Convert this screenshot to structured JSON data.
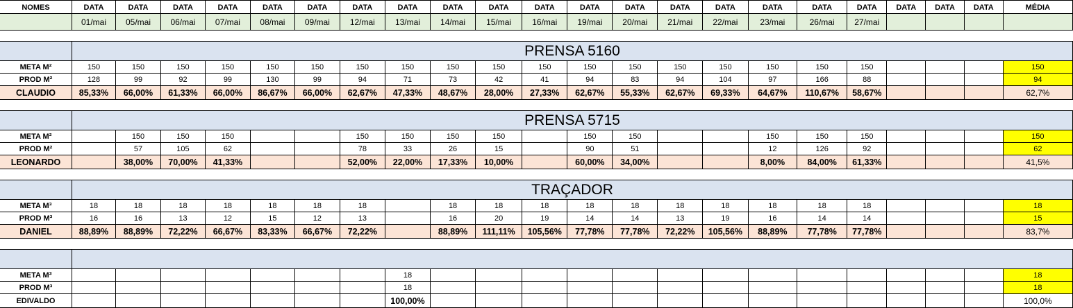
{
  "header": {
    "names_label": "NOMES",
    "date_label": "DATA",
    "avg_label": "MÉDIA",
    "dates": [
      "01/mai",
      "05/mai",
      "06/mai",
      "07/mai",
      "08/mai",
      "09/mai",
      "12/mai",
      "13/mai",
      "14/mai",
      "15/mai",
      "16/mai",
      "19/mai",
      "20/mai",
      "21/mai",
      "22/mai",
      "23/mai",
      "26/mai",
      "27/mai",
      "",
      "",
      ""
    ]
  },
  "sections": [
    {
      "title": "PRENSA 5160",
      "meta_label": "META M²",
      "prod_label": "PROD M²",
      "operator": "CLAUDIO",
      "meta": [
        "150",
        "150",
        "150",
        "150",
        "150",
        "150",
        "150",
        "150",
        "150",
        "150",
        "150",
        "150",
        "150",
        "150",
        "150",
        "150",
        "150",
        "150",
        "",
        "",
        ""
      ],
      "prod": [
        "128",
        "99",
        "92",
        "99",
        "130",
        "99",
        "94",
        "71",
        "73",
        "42",
        "41",
        "94",
        "83",
        "94",
        "104",
        "97",
        "166",
        "88",
        "",
        "",
        ""
      ],
      "pct": [
        "85,33%",
        "66,00%",
        "61,33%",
        "66,00%",
        "86,67%",
        "66,00%",
        "62,67%",
        "47,33%",
        "48,67%",
        "28,00%",
        "27,33%",
        "62,67%",
        "55,33%",
        "62,67%",
        "69,33%",
        "64,67%",
        "110,67%",
        "58,67%",
        "",
        "",
        ""
      ],
      "avg_meta": "150",
      "avg_prod": "94",
      "avg_pct": "62,7%"
    },
    {
      "title": "PRENSA 5715",
      "meta_label": "META M²",
      "prod_label": "PROD M²",
      "operator": "LEONARDO",
      "meta": [
        "",
        "150",
        "150",
        "150",
        "",
        "",
        "150",
        "150",
        "150",
        "150",
        "",
        "150",
        "150",
        "",
        "",
        "150",
        "150",
        "150",
        "",
        "",
        ""
      ],
      "prod": [
        "",
        "57",
        "105",
        "62",
        "",
        "",
        "78",
        "33",
        "26",
        "15",
        "",
        "90",
        "51",
        "",
        "",
        "12",
        "126",
        "92",
        "",
        "",
        ""
      ],
      "pct": [
        "",
        "38,00%",
        "70,00%",
        "41,33%",
        "",
        "",
        "52,00%",
        "22,00%",
        "17,33%",
        "10,00%",
        "",
        "60,00%",
        "34,00%",
        "",
        "",
        "8,00%",
        "84,00%",
        "61,33%",
        "",
        "",
        ""
      ],
      "avg_meta": "150",
      "avg_prod": "62",
      "avg_pct": "41,5%"
    },
    {
      "title": "TRAÇADOR",
      "meta_label": "META M³",
      "prod_label": "PROD M³",
      "operator": "DANIEL",
      "meta": [
        "18",
        "18",
        "18",
        "18",
        "18",
        "18",
        "18",
        "",
        "18",
        "18",
        "18",
        "18",
        "18",
        "18",
        "18",
        "18",
        "18",
        "18",
        "",
        "",
        ""
      ],
      "prod": [
        "16",
        "16",
        "13",
        "12",
        "15",
        "12",
        "13",
        "",
        "16",
        "20",
        "19",
        "14",
        "14",
        "13",
        "19",
        "16",
        "14",
        "14",
        "",
        "",
        ""
      ],
      "pct": [
        "88,89%",
        "88,89%",
        "72,22%",
        "66,67%",
        "83,33%",
        "66,67%",
        "72,22%",
        "",
        "88,89%",
        "111,11%",
        "105,56%",
        "77,78%",
        "77,78%",
        "72,22%",
        "105,56%",
        "88,89%",
        "77,78%",
        "77,78%",
        "",
        "",
        ""
      ],
      "avg_meta": "18",
      "avg_prod": "15",
      "avg_pct": "83,7%"
    },
    {
      "title": "",
      "meta_label": "META M³",
      "prod_label": "PROD M³",
      "operator": "EDIVALDO",
      "meta": [
        "",
        "",
        "",
        "",
        "",
        "",
        "",
        "18",
        "",
        "",
        "",
        "",
        "",
        "",
        "",
        "",
        "",
        "",
        "",
        "",
        ""
      ],
      "prod": [
        "",
        "",
        "",
        "",
        "",
        "",
        "",
        "18",
        "",
        "",
        "",
        "",
        "",
        "",
        "",
        "",
        "",
        "",
        "",
        "",
        ""
      ],
      "pct": [
        "",
        "",
        "",
        "",
        "",
        "",
        "",
        "100,00%",
        "",
        "",
        "",
        "",
        "",
        "",
        "",
        "",
        "",
        "",
        "",
        "",
        ""
      ],
      "avg_meta": "18",
      "avg_prod": "18",
      "avg_pct": "100,0%"
    }
  ],
  "colors": {
    "section_band": "#dae3f0",
    "dates_row": "#e2efda",
    "pct_row": "#fce4d6",
    "avg_highlight": "#ffff00"
  }
}
